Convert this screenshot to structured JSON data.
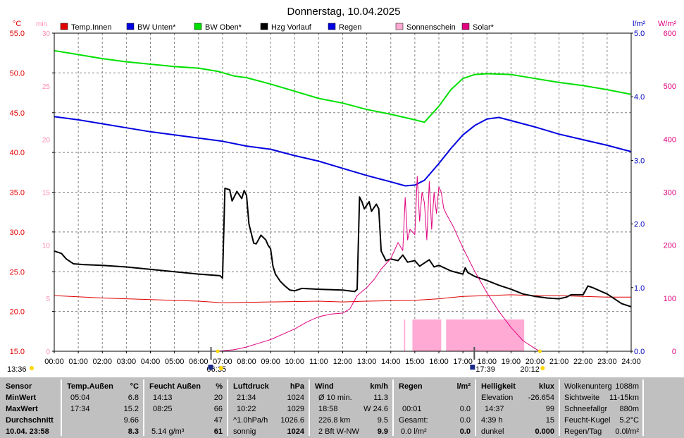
{
  "chart_data": {
    "type": "line",
    "title": "Donnerstag, 10.04.2025",
    "legend": [
      {
        "name": "Temp.Innen",
        "color": "#e00000"
      },
      {
        "name": "BW Unten*",
        "color": "#0000e0"
      },
      {
        "name": "BW Oben*",
        "color": "#00e000"
      },
      {
        "name": "Hzg Vorlauf",
        "color": "#000000"
      },
      {
        "name": "Regen",
        "color": "#0000e0"
      },
      {
        "name": "Sonnenschein",
        "color": "#ffaad4"
      },
      {
        "name": "Solar*",
        "color": "#e0007f"
      }
    ],
    "axes": {
      "left_unit": "°C",
      "left_min_label": "min",
      "left_ticks": [
        "55.0",
        "50.0",
        "45.0",
        "40.0",
        "35.0",
        "30.0",
        "25.0",
        "20.0",
        "15.0"
      ],
      "min_ticks": [
        "30",
        "25",
        "20",
        "15",
        "10",
        "5",
        "0"
      ],
      "rain_unit": "l/m²",
      "rain_ticks": [
        "5.0",
        "4.0",
        "3.0",
        "2.0",
        "1.0",
        "0.0"
      ],
      "solar_unit": "W/m²",
      "solar_ticks": [
        "600",
        "500",
        "400",
        "300",
        "200",
        "100",
        "0"
      ],
      "x_ticks": [
        "00:00",
        "01:00",
        "02:00",
        "03:00",
        "04:00",
        "05:00",
        "06:00",
        "07:00",
        "08:00",
        "09:00",
        "10:00",
        "11:00",
        "12:00",
        "13:00",
        "14:00",
        "15:00",
        "16:00",
        "17:00",
        "18:00",
        "19:00",
        "20:00",
        "21:00",
        "22:00",
        "23:00",
        "24:00"
      ],
      "ylim_c": [
        15,
        55
      ],
      "ylim_rain": [
        0,
        5
      ],
      "ylim_solar": [
        0,
        600
      ],
      "xlim_h": [
        0,
        24
      ]
    },
    "series": [
      {
        "name": "Temp.Innen",
        "color": "#e00000",
        "unit": "°C",
        "points": [
          [
            0,
            22.0
          ],
          [
            2,
            21.7
          ],
          [
            4,
            21.5
          ],
          [
            6,
            21.3
          ],
          [
            7,
            21.1
          ],
          [
            9,
            21.2
          ],
          [
            11,
            21.3
          ],
          [
            12,
            21.2
          ],
          [
            13,
            21.3
          ],
          [
            15,
            21.4
          ],
          [
            16,
            21.6
          ],
          [
            17,
            21.9
          ],
          [
            18,
            22.0
          ],
          [
            19,
            22.1
          ],
          [
            20,
            22.0
          ],
          [
            21,
            22.0
          ],
          [
            22,
            21.9
          ],
          [
            23,
            21.8
          ],
          [
            24,
            21.8
          ]
        ]
      },
      {
        "name": "BW Unten*",
        "color": "#0000e0",
        "unit": "°C",
        "points": [
          [
            0,
            44.5
          ],
          [
            1,
            44.1
          ],
          [
            2,
            43.6
          ],
          [
            3,
            43.1
          ],
          [
            4,
            42.6
          ],
          [
            5,
            42.2
          ],
          [
            6,
            41.8
          ],
          [
            7,
            41.4
          ],
          [
            8,
            40.8
          ],
          [
            9,
            40.4
          ],
          [
            10,
            39.6
          ],
          [
            11,
            38.9
          ],
          [
            12,
            38.0
          ],
          [
            13,
            37.1
          ],
          [
            14,
            36.3
          ],
          [
            14.6,
            35.8
          ],
          [
            15.0,
            35.9
          ],
          [
            15.4,
            36.5
          ],
          [
            16,
            38.6
          ],
          [
            16.5,
            40.5
          ],
          [
            17,
            42.2
          ],
          [
            17.5,
            43.4
          ],
          [
            18,
            44.2
          ],
          [
            18.5,
            44.4
          ],
          [
            19,
            44.0
          ],
          [
            20,
            43.2
          ],
          [
            21,
            42.3
          ],
          [
            22,
            41.6
          ],
          [
            23,
            40.9
          ],
          [
            24,
            40.1
          ]
        ]
      },
      {
        "name": "BW Oben*",
        "color": "#00e000",
        "unit": "°C",
        "points": [
          [
            0,
            52.8
          ],
          [
            1,
            52.3
          ],
          [
            2,
            51.8
          ],
          [
            3,
            51.4
          ],
          [
            4,
            51.1
          ],
          [
            5,
            50.8
          ],
          [
            6,
            50.6
          ],
          [
            6.8,
            50.2
          ],
          [
            7.5,
            49.6
          ],
          [
            8,
            49.4
          ],
          [
            9,
            48.6
          ],
          [
            10,
            47.7
          ],
          [
            11,
            46.8
          ],
          [
            12,
            46.2
          ],
          [
            13,
            45.4
          ],
          [
            14,
            44.8
          ],
          [
            15,
            44.1
          ],
          [
            15.4,
            43.8
          ],
          [
            16,
            45.8
          ],
          [
            16.5,
            47.9
          ],
          [
            17,
            49.3
          ],
          [
            17.5,
            49.8
          ],
          [
            18,
            49.9
          ],
          [
            19,
            49.8
          ],
          [
            20,
            49.3
          ],
          [
            21,
            48.8
          ],
          [
            22,
            48.4
          ],
          [
            23,
            47.9
          ],
          [
            24,
            47.3
          ]
        ]
      },
      {
        "name": "Hzg Vorlauf",
        "color": "#000000",
        "unit": "°C",
        "points": [
          [
            0,
            27.6
          ],
          [
            0.3,
            27.3
          ],
          [
            0.5,
            26.6
          ],
          [
            0.8,
            26.0
          ],
          [
            1.2,
            25.9
          ],
          [
            2,
            25.8
          ],
          [
            3,
            25.6
          ],
          [
            4,
            25.3
          ],
          [
            5,
            25.0
          ],
          [
            6,
            24.7
          ],
          [
            6.9,
            24.5
          ],
          [
            7.0,
            24.2
          ],
          [
            7.1,
            35.5
          ],
          [
            7.3,
            35.3
          ],
          [
            7.4,
            33.9
          ],
          [
            7.6,
            35.1
          ],
          [
            7.8,
            34.2
          ],
          [
            7.9,
            35.2
          ],
          [
            8.0,
            34.6
          ],
          [
            8.1,
            31.0
          ],
          [
            8.3,
            28.6
          ],
          [
            8.4,
            28.5
          ],
          [
            8.6,
            29.6
          ],
          [
            8.8,
            29.0
          ],
          [
            8.9,
            28.3
          ],
          [
            9.0,
            27.9
          ],
          [
            9.1,
            25.7
          ],
          [
            9.2,
            24.7
          ],
          [
            9.4,
            23.8
          ],
          [
            9.6,
            23.2
          ],
          [
            9.8,
            22.7
          ],
          [
            10,
            22.6
          ],
          [
            10.3,
            22.9
          ],
          [
            11,
            22.8
          ],
          [
            12,
            22.7
          ],
          [
            12.5,
            22.5
          ],
          [
            12.6,
            22.8
          ],
          [
            12.7,
            34.4
          ],
          [
            12.8,
            33.8
          ],
          [
            12.9,
            32.9
          ],
          [
            13.1,
            33.8
          ],
          [
            13.2,
            32.6
          ],
          [
            13.4,
            33.5
          ],
          [
            13.5,
            32.9
          ],
          [
            13.6,
            27.6
          ],
          [
            13.8,
            26.4
          ],
          [
            14.0,
            26.6
          ],
          [
            14.3,
            26.4
          ],
          [
            14.5,
            27.1
          ],
          [
            14.7,
            26.2
          ],
          [
            15.0,
            26.4
          ],
          [
            15.2,
            25.7
          ],
          [
            15.4,
            26.1
          ],
          [
            15.6,
            26.5
          ],
          [
            15.8,
            25.6
          ],
          [
            16,
            25.8
          ],
          [
            16.5,
            25.1
          ],
          [
            17.0,
            24.7
          ],
          [
            17.1,
            25.5
          ],
          [
            17.2,
            24.9
          ],
          [
            17.5,
            24.4
          ],
          [
            18,
            23.9
          ],
          [
            18.5,
            23.3
          ],
          [
            19,
            22.8
          ],
          [
            19.5,
            22.2
          ],
          [
            20,
            21.9
          ],
          [
            20.5,
            21.7
          ],
          [
            21,
            21.6
          ],
          [
            21.3,
            21.8
          ],
          [
            21.5,
            22.1
          ],
          [
            22,
            22.1
          ],
          [
            22.2,
            23.2
          ],
          [
            22.4,
            23.0
          ],
          [
            22.7,
            22.6
          ],
          [
            23,
            22.2
          ],
          [
            23.3,
            21.6
          ],
          [
            23.6,
            21.0
          ],
          [
            24,
            20.6
          ]
        ]
      },
      {
        "name": "Solar*",
        "color": "#e0007f",
        "unit": "W/m²",
        "points": [
          [
            6.8,
            0
          ],
          [
            7.5,
            3
          ],
          [
            8,
            8
          ],
          [
            8.5,
            15
          ],
          [
            9,
            22
          ],
          [
            9.5,
            32
          ],
          [
            10,
            42
          ],
          [
            10.5,
            55
          ],
          [
            11,
            65
          ],
          [
            11.5,
            70
          ],
          [
            12,
            72
          ],
          [
            12.3,
            80
          ],
          [
            12.6,
            105
          ],
          [
            13,
            120
          ],
          [
            13.3,
            135
          ],
          [
            13.6,
            155
          ],
          [
            14,
            175
          ],
          [
            14.3,
            205
          ],
          [
            14.5,
            190
          ],
          [
            14.6,
            290
          ],
          [
            14.7,
            210
          ],
          [
            14.8,
            230
          ],
          [
            15.0,
            220
          ],
          [
            15.1,
            330
          ],
          [
            15.2,
            245
          ],
          [
            15.3,
            300
          ],
          [
            15.4,
            280
          ],
          [
            15.5,
            210
          ],
          [
            15.6,
            320
          ],
          [
            15.7,
            230
          ],
          [
            15.8,
            300
          ],
          [
            15.9,
            260
          ],
          [
            16.0,
            310
          ],
          [
            16.1,
            300
          ],
          [
            16.2,
            270
          ],
          [
            16.3,
            260
          ],
          [
            16.6,
            235
          ],
          [
            17,
            195
          ],
          [
            17.5,
            150
          ],
          [
            18,
            110
          ],
          [
            18.5,
            75
          ],
          [
            19,
            45
          ],
          [
            19.5,
            20
          ],
          [
            20,
            5
          ],
          [
            20.2,
            0
          ]
        ]
      },
      {
        "name": "Sonnenschein",
        "color": "#ffaad4",
        "unit": "min",
        "bars": [
          [
            14.55,
            14.6
          ],
          [
            14.9,
            16.1
          ],
          [
            16.3,
            19.55
          ]
        ]
      },
      {
        "name": "Regen",
        "color": "#0000e0",
        "unit": "l/m²",
        "points": [
          [
            0,
            0
          ],
          [
            24,
            0
          ]
        ]
      }
    ],
    "annotations": [
      {
        "text": "13:36",
        "x": 0
      },
      {
        "text": "06:35",
        "x": 6.58
      },
      {
        "text": "17:39",
        "x": 17.65
      },
      {
        "text": "20:12",
        "x": 20.2
      }
    ]
  },
  "table": {
    "labels": {
      "sensor": "Sensor",
      "min": "MinWert",
      "max": "MaxWert",
      "avg": "Durchschnitt",
      "date": "10.04. 23:58"
    },
    "temp": {
      "title": "Temp.Außen",
      "unit": "°C",
      "min_time": "05:04",
      "min_val": "6.8",
      "max_time": "17:34",
      "max_val": "15.2",
      "avg": "9.66",
      "current": "8.3"
    },
    "feucht": {
      "title": "Feucht Außen",
      "unit": "%",
      "min_time": "14:13",
      "min_val": "20",
      "max_time": "08:25",
      "max_val": "66",
      "avg": "47",
      "abs": "5.14 g/m³",
      "current": "61"
    },
    "druck": {
      "title": "Luftdruck",
      "unit": "hPa",
      "min_time": "21:34",
      "min_val": "1024",
      "max_time": "10:22",
      "max_val": "1029",
      "trend": "^1.0hPa/h",
      "trend_val": "1026.6",
      "text": "sonnig",
      "current": "1024"
    },
    "wind": {
      "title": "Wind",
      "unit": "km/h",
      "r1a": "Ø 10 min.",
      "r1b": "11.3",
      "r2a": "18:58",
      "r2b": "W 24.6",
      "r3a": "226.8 km",
      "r3b": "9.5",
      "r4a": "2 Bft W-NW",
      "current": "9.9"
    },
    "regen": {
      "title": "Regen",
      "unit": "l/m²",
      "r1a": "",
      "r1b": "",
      "r2a": "00:01",
      "r2b": "0.0",
      "r3a": "Gesamt:",
      "r3b": "0.0",
      "r4a": "0.0 l/m²",
      "current": "0.0"
    },
    "hell": {
      "title": "Helligkeit",
      "unit": "klux",
      "r1a": "Elevation",
      "r1b": "-26.654",
      "r2a": "14:37",
      "r2b": "99",
      "r3a": "4:39 h",
      "r3b": "15",
      "r4a": "dunkel",
      "current": "0.000"
    },
    "misc": {
      "r0a": "Wolkenunterg",
      "r0b": "1088m",
      "r1a": "Sichtweite",
      "r1b": "11-15km",
      "r2a": "Schneefallgr",
      "r2b": "880m",
      "r3a": "Feucht-Kugel",
      "r3b": "5.2°C",
      "r4a": "Regen/Tag",
      "r4b": "0.0l/m²"
    }
  }
}
